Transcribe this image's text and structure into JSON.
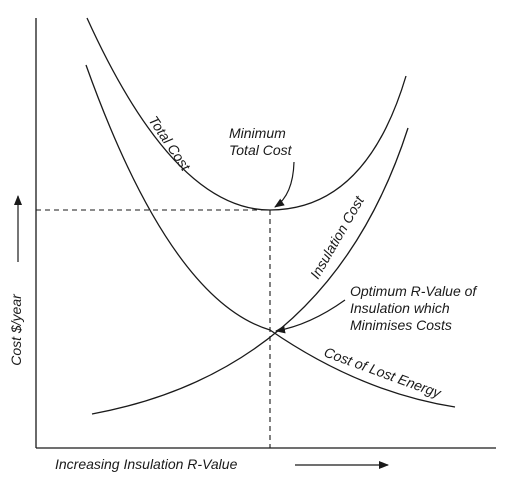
{
  "chart_data": {
    "type": "line",
    "xlabel": "Increasing Insulation R-Value",
    "ylabel": "Cost $/year",
    "series": [
      {
        "name": "Total Cost"
      },
      {
        "name": "Insulation Cost"
      },
      {
        "name": "Cost of Lost Energy"
      }
    ],
    "annotations": [
      {
        "lines": [
          "Minimum",
          "Total Cost"
        ]
      },
      {
        "lines": [
          "Optimum R-Value of",
          "Insulation which",
          "Minimises Costs"
        ]
      }
    ],
    "axis_ticks": false,
    "grid": false
  }
}
